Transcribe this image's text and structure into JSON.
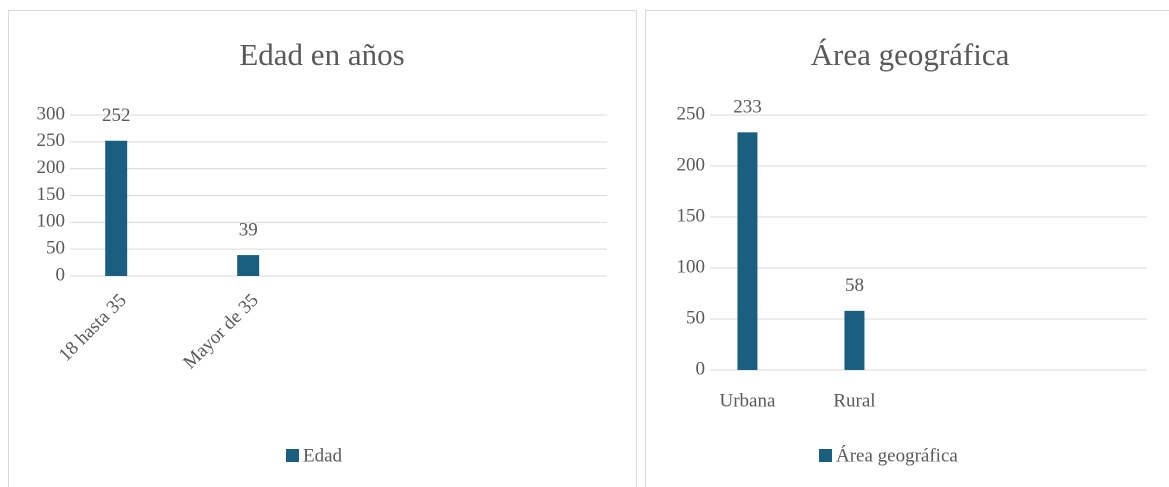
{
  "chart_data": [
    {
      "type": "bar",
      "title": "Edad en años",
      "categories": [
        "18 hasta 35",
        "Mayor de 35"
      ],
      "series": [
        {
          "name": "Edad",
          "color": "#1a5f80",
          "values": [
            252,
            39
          ]
        }
      ],
      "ylim": [
        0,
        300
      ],
      "yticks": [
        0,
        50,
        100,
        150,
        200,
        250,
        300
      ],
      "grid": true,
      "legend": "bottom"
    },
    {
      "type": "bar",
      "title": "Área geográfica",
      "categories": [
        "Urbana",
        "Rural"
      ],
      "series": [
        {
          "name": "Área geográfica",
          "color": "#1a5f80",
          "values": [
            233,
            58
          ]
        }
      ],
      "ylim": [
        0,
        250
      ],
      "yticks": [
        0,
        50,
        100,
        150,
        200,
        250
      ],
      "grid": true,
      "legend": "bottom"
    }
  ]
}
